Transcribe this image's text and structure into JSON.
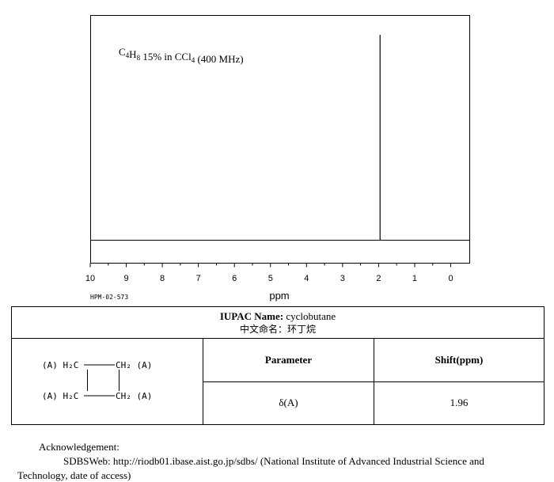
{
  "chart_data": {
    "type": "nmr-spectrum",
    "annotation": {
      "formula_parts": [
        {
          "t": "C",
          "sub": false
        },
        {
          "t": "4",
          "sub": true
        },
        {
          "t": "H",
          "sub": false
        },
        {
          "t": "8",
          "sub": true
        },
        {
          "t": " 15% in CCl",
          "sub": false
        },
        {
          "t": "4",
          "sub": true
        },
        {
          "t": " (400 MHz)",
          "sub": false
        }
      ]
    },
    "x_ticks": [
      "10",
      "9",
      "8",
      "7",
      "6",
      "5",
      "4",
      "3",
      "2",
      "1",
      "0"
    ],
    "xlim": [
      10,
      0
    ],
    "xlabel": "ppm",
    "peaks": [
      {
        "shift": 1.96,
        "intensity": 1.0
      }
    ],
    "code": "HPM-02-573"
  },
  "info": {
    "iupac_label": "IUPAC Name:",
    "iupac_value": " cyclobutane",
    "chinese_name": "中文命名：环丁烷",
    "structure_labels": [
      "(A) H₂C",
      "CH₂ (A)",
      "(A) H₂C",
      "CH₂ (A)"
    ],
    "header_parameter": "Parameter",
    "header_shift": "Shift(ppm)",
    "param": "δ(A)",
    "shift": "1.96"
  },
  "ack": {
    "title": "Acknowledgement:",
    "line1": "SDBSWeb: http://riodb01.ibase.aist.go.jp/sdbs/ (National Institute of Advanced Industrial Science and",
    "line2": "Technology, date of access)"
  }
}
